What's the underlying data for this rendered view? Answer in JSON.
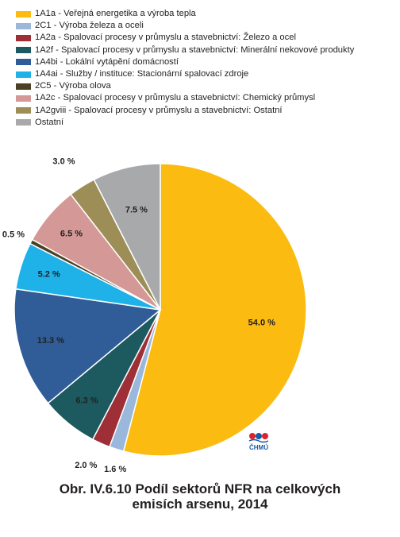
{
  "chart_data": {
    "type": "pie",
    "legend_position": "top-left",
    "slices": [
      {
        "label": "1A1a - Veřejná energetika a výroba tepla",
        "value": 54.0,
        "display": "54.0 %",
        "color": "#fbbb10"
      },
      {
        "label": "2C1 - Výroba železa a oceli",
        "value": 1.6,
        "display": "1.6 %",
        "color": "#9ab7dc"
      },
      {
        "label": "1A2a - Spalovací procesy v průmyslu a stavebnictví: Železo a ocel",
        "value": 2.0,
        "display": "2.0 %",
        "color": "#9e2f36"
      },
      {
        "label": "1A2f - Spalovací procesy v průmyslu a stavebnictví: Minerální nekovové produkty",
        "value": 6.3,
        "display": "6.3 %",
        "color": "#1c5a60"
      },
      {
        "label": "1A4bi - Lokální vytápění domácností",
        "value": 13.3,
        "display": "13.3 %",
        "color": "#305d98"
      },
      {
        "label": "1A4ai - Služby / instituce: Stacionární spalovací zdroje",
        "value": 5.2,
        "display": "5.2 %",
        "color": "#1fb2e8"
      },
      {
        "label": "2C5 - Výroba olova",
        "value": 0.5,
        "display": "0.5 %",
        "color": "#4b4024"
      },
      {
        "label": "1A2c - Spalovací procesy v průmyslu a stavebnictví: Chemický průmysl",
        "value": 6.5,
        "display": "6.5 %",
        "color": "#d49896"
      },
      {
        "label": "1A2gviii - Spalovací procesy v průmyslu a stavebnictví: Ostatní",
        "value": 3.0,
        "display": "3.0 %",
        "color": "#9d8e58"
      },
      {
        "label": "Ostatní",
        "value": 7.5,
        "display": "7.5 %",
        "color": "#a7a9ab"
      }
    ]
  },
  "caption_line1": "Obr. IV.6.10  Podíl sektorů NFR na celkových",
  "caption_line2": "emisích arsenu, 2014",
  "logo": {
    "text": "ČHMÚ"
  }
}
